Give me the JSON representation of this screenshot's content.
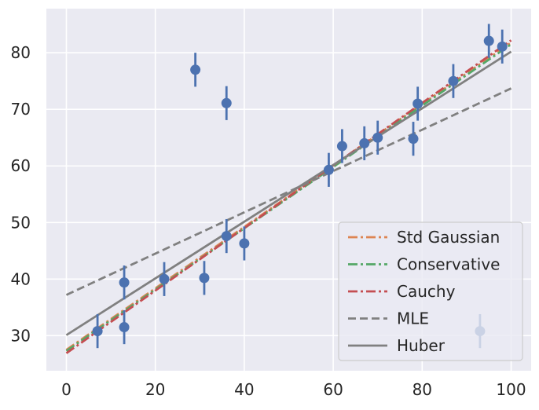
{
  "chart_data": {
    "type": "scatter",
    "title": "",
    "xlabel": "",
    "ylabel": "",
    "xlim": [
      -4.5,
      104.5
    ],
    "ylim": [
      23.8,
      87.8
    ],
    "xticks": [
      0,
      20,
      40,
      60,
      80,
      100
    ],
    "yticks": [
      30,
      40,
      50,
      60,
      70,
      80
    ],
    "grid": true,
    "background": "#eaeaf2",
    "points": {
      "color": "#4c72b0",
      "error": 3,
      "x": [
        7,
        13,
        13,
        22,
        29,
        31,
        36,
        36,
        40,
        59,
        62,
        67,
        70,
        78,
        79,
        87,
        93,
        95,
        98
      ],
      "y": [
        30.8,
        39.4,
        31.5,
        40.0,
        77.0,
        40.2,
        71.1,
        47.6,
        46.3,
        59.3,
        63.5,
        64.0,
        65.0,
        64.8,
        71.0,
        75.0,
        30.8,
        82.1,
        81.1
      ]
    },
    "series": [
      {
        "name": "Std Gaussian",
        "color": "#dd8452",
        "style": "dashdot",
        "x": [
          0,
          100
        ],
        "y": [
          27.5,
          81.8
        ]
      },
      {
        "name": "Conservative",
        "color": "#55a868",
        "style": "dashdot",
        "x": [
          0,
          100
        ],
        "y": [
          27.3,
          81.5
        ]
      },
      {
        "name": "Cauchy",
        "color": "#c44e52",
        "style": "dashdot",
        "x": [
          0,
          100
        ],
        "y": [
          26.9,
          82.2
        ]
      },
      {
        "name": "MLE",
        "color": "#808080",
        "style": "dashed",
        "x": [
          0,
          100
        ],
        "y": [
          37.2,
          73.7
        ]
      },
      {
        "name": "Huber",
        "color": "#808080",
        "style": "solid",
        "x": [
          0,
          100
        ],
        "y": [
          30.1,
          80.2
        ]
      }
    ],
    "legend": {
      "placement": "lower-right"
    }
  }
}
